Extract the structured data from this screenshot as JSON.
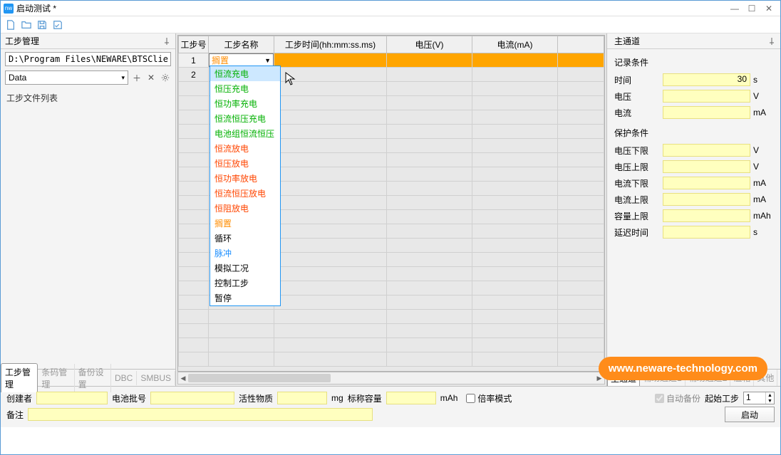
{
  "window": {
    "title": "启动测试 *"
  },
  "left": {
    "header": "工步管理",
    "path": "D:\\Program Files\\NEWARE\\BTSClie",
    "data_select": "Data",
    "file_list_label": "工步文件列表",
    "tabs": [
      "工步管理",
      "条码管理",
      "备份设置",
      "DBC",
      "SMBUS"
    ]
  },
  "grid": {
    "headers": {
      "num": "工步号",
      "name": "工步名称",
      "time": "工步时间(hh:mm:ss.ms)",
      "voltage": "电压(V)",
      "current": "电流(mA)"
    },
    "row1_num": "1",
    "row2_num": "2",
    "selected_name": "搁置",
    "dropdown": [
      {
        "label": "恒流充电",
        "cls": "dd-green"
      },
      {
        "label": "恒压充电",
        "cls": "dd-green"
      },
      {
        "label": "恒功率充电",
        "cls": "dd-green"
      },
      {
        "label": "恒流恒压充电",
        "cls": "dd-green"
      },
      {
        "label": "电池组恒流恒压",
        "cls": "dd-green"
      },
      {
        "label": "恒流放电",
        "cls": "dd-red"
      },
      {
        "label": "恒压放电",
        "cls": "dd-red"
      },
      {
        "label": "恒功率放电",
        "cls": "dd-red"
      },
      {
        "label": "恒流恒压放电",
        "cls": "dd-red"
      },
      {
        "label": "恒阻放电",
        "cls": "dd-red"
      },
      {
        "label": "搁置",
        "cls": "dd-orange"
      },
      {
        "label": "循环",
        "cls": "dd-black"
      },
      {
        "label": "脉冲",
        "cls": "dd-blue"
      },
      {
        "label": "模拟工况",
        "cls": "dd-black"
      },
      {
        "label": "控制工步",
        "cls": "dd-black"
      },
      {
        "label": "暂停",
        "cls": "dd-black"
      }
    ]
  },
  "right": {
    "header": "主通道",
    "record_title": "记录条件",
    "protect_title": "保护条件",
    "params": {
      "time_label": "时间",
      "time_val": "30",
      "time_unit": "s",
      "volt_label": "电压",
      "volt_unit": "V",
      "curr_label": "电流",
      "curr_unit": "mA",
      "vlow_label": "电压下限",
      "vlow_unit": "V",
      "vhigh_label": "电压上限",
      "vhigh_unit": "V",
      "clow_label": "电流下限",
      "clow_unit": "mA",
      "chigh_label": "电流上限",
      "chigh_unit": "mA",
      "cap_label": "容量上限",
      "cap_unit": "mAh",
      "delay_label": "延迟时间",
      "delay_unit": "s"
    },
    "tabs": [
      "主通道",
      "辅助通道1",
      "辅助通道2",
      "温箱",
      "其他"
    ],
    "auto_backup": "自动备份",
    "start_step": "起始工步",
    "start_step_val": "1",
    "launch": "启动"
  },
  "bottom": {
    "creator": "创建者",
    "battery_batch": "电池批号",
    "active_mat": "活性物质",
    "mg": "mg",
    "nominal_cap": "标称容量",
    "mah": "mAh",
    "rate_mode": "倍率模式",
    "remark": "备注"
  },
  "watermark": "www.neware-technology.com",
  "colors": {
    "accent": "#ffa500",
    "input_yellow": "#ffffbf",
    "border_blue": "#5a9bd5"
  }
}
